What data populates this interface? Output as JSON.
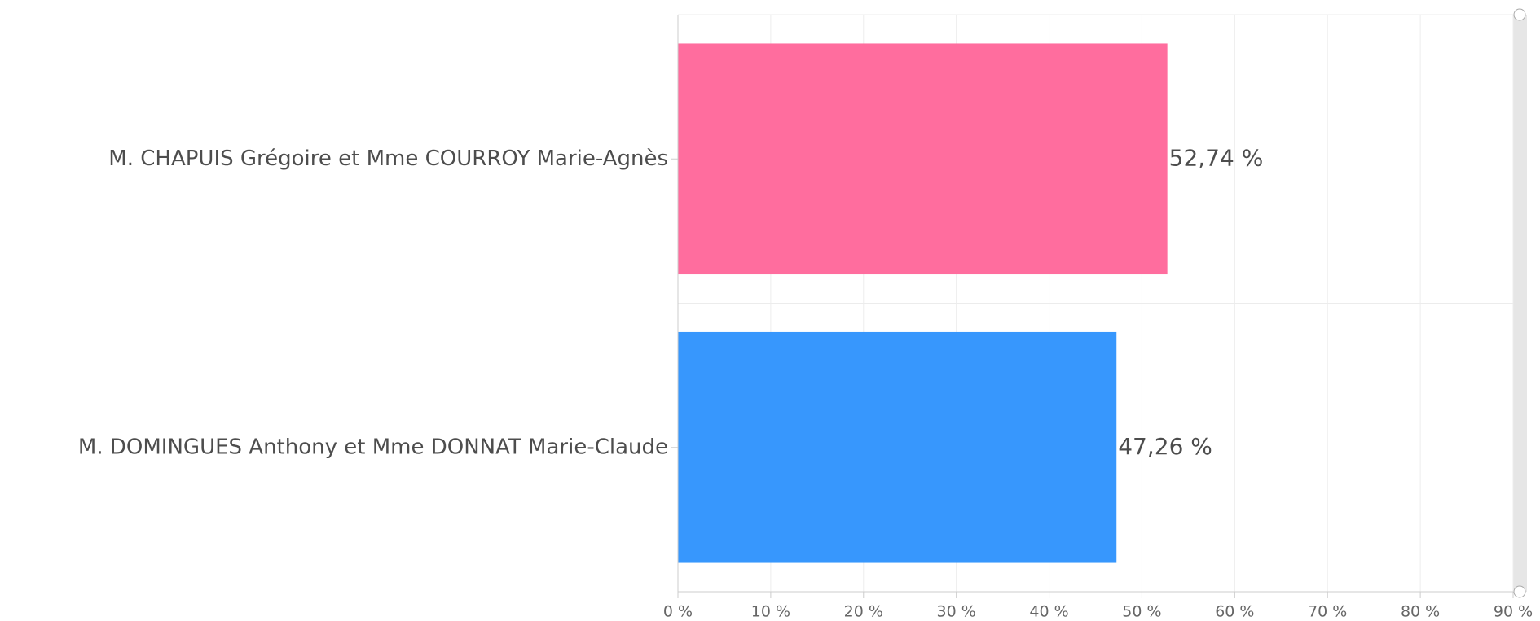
{
  "chart_data": {
    "type": "bar",
    "orientation": "horizontal",
    "categories": [
      "M. CHAPUIS Grégoire et Mme COURROY Marie-Agnès",
      "M. DOMINGUES Anthony et Mme DONNAT Marie-Claude"
    ],
    "values": [
      52.74,
      47.26
    ],
    "value_labels": [
      "52,74 %",
      "47,26 %"
    ],
    "colors": [
      "#ff6d9e",
      "#3797fd"
    ],
    "xlim": [
      0,
      90
    ],
    "xticks": [
      {
        "value": 0,
        "label": "0 %"
      },
      {
        "value": 10,
        "label": "10 %"
      },
      {
        "value": 20,
        "label": "20 %"
      },
      {
        "value": 30,
        "label": "30 %"
      },
      {
        "value": 40,
        "label": "40 %"
      },
      {
        "value": 50,
        "label": "50 %"
      },
      {
        "value": 60,
        "label": "60 %"
      },
      {
        "value": 70,
        "label": "70 %"
      },
      {
        "value": 80,
        "label": "80 %"
      },
      {
        "value": 90,
        "label": "90 %"
      }
    ],
    "grid": true
  }
}
